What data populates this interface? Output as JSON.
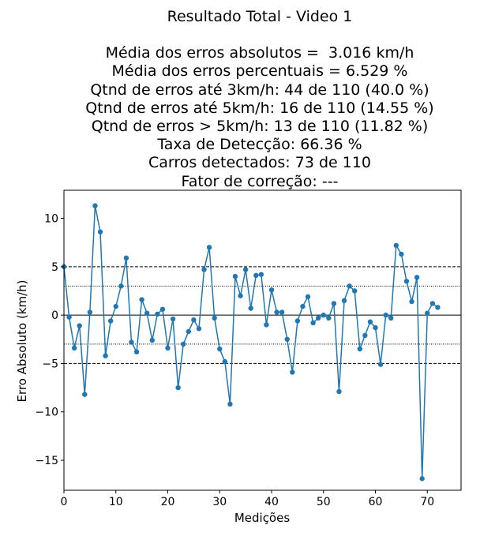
{
  "title_lines": [
    "Resultado Total - Video 1",
    "Média dos erros absolutos =  3.016 km/h",
    "Média dos erros percentuais = 6.529 %",
    "Qtnd de erros até 3km/h: 44 de 110 (40.0 %)",
    "Qtnd de erros até 5km/h: 16 de 110 (14.55 %)",
    "Qtnd de erros > 5km/h: 13 de 110 (11.82 %)",
    "Taxa de Detecção: 66.36 %",
    "Carros detectados: 73 de 110",
    "Fator de correção: ---"
  ],
  "chart_data": {
    "type": "line",
    "title": "Resultado Total - Video 1",
    "xlabel": "Medições",
    "ylabel": "Erro Absoluto (km/h)",
    "xlim": [
      0,
      76.5
    ],
    "ylim": [
      -18.1,
      12.9
    ],
    "xticks": [
      0,
      10,
      20,
      30,
      40,
      50,
      60,
      70
    ],
    "yticks": [
      -15,
      -10,
      -5,
      0,
      5,
      10
    ],
    "grid": false,
    "color": "#1f77b4",
    "reference_lines": [
      {
        "y": 5,
        "style": "dashed"
      },
      {
        "y": -5,
        "style": "dashed"
      },
      {
        "y": 3,
        "style": "dotted"
      },
      {
        "y": -3,
        "style": "dotted"
      },
      {
        "y": 0,
        "style": "solid"
      }
    ],
    "series": [
      {
        "values": [
          5.0,
          -0.2,
          -3.4,
          -1.1,
          -8.2,
          0.3,
          11.3,
          8.6,
          -4.2,
          -0.6,
          0.9,
          3.0,
          5.9,
          -2.8,
          -3.8,
          1.6,
          0.2,
          -2.6,
          0.1,
          0.6,
          -3.4,
          -0.4,
          -7.5,
          -3.0,
          -1.7,
          -0.5,
          -1.4,
          4.7,
          7.0,
          -0.3,
          -3.5,
          -4.8,
          -9.2,
          4.0,
          2.0,
          4.7,
          0.7,
          4.1,
          4.2,
          -1.0,
          2.6,
          0.3,
          0.3,
          -2.5,
          -5.9,
          -0.6,
          0.9,
          1.9,
          -0.8,
          -0.3,
          0.0,
          -0.3,
          1.2,
          -7.9,
          1.5,
          3.0,
          2.5,
          -3.5,
          -2.1,
          -0.7,
          -1.3,
          -5.1,
          0.0,
          -0.3,
          7.2,
          6.3,
          3.5,
          1.4,
          3.9,
          -16.9,
          0.2,
          1.2,
          0.8
        ]
      }
    ]
  }
}
